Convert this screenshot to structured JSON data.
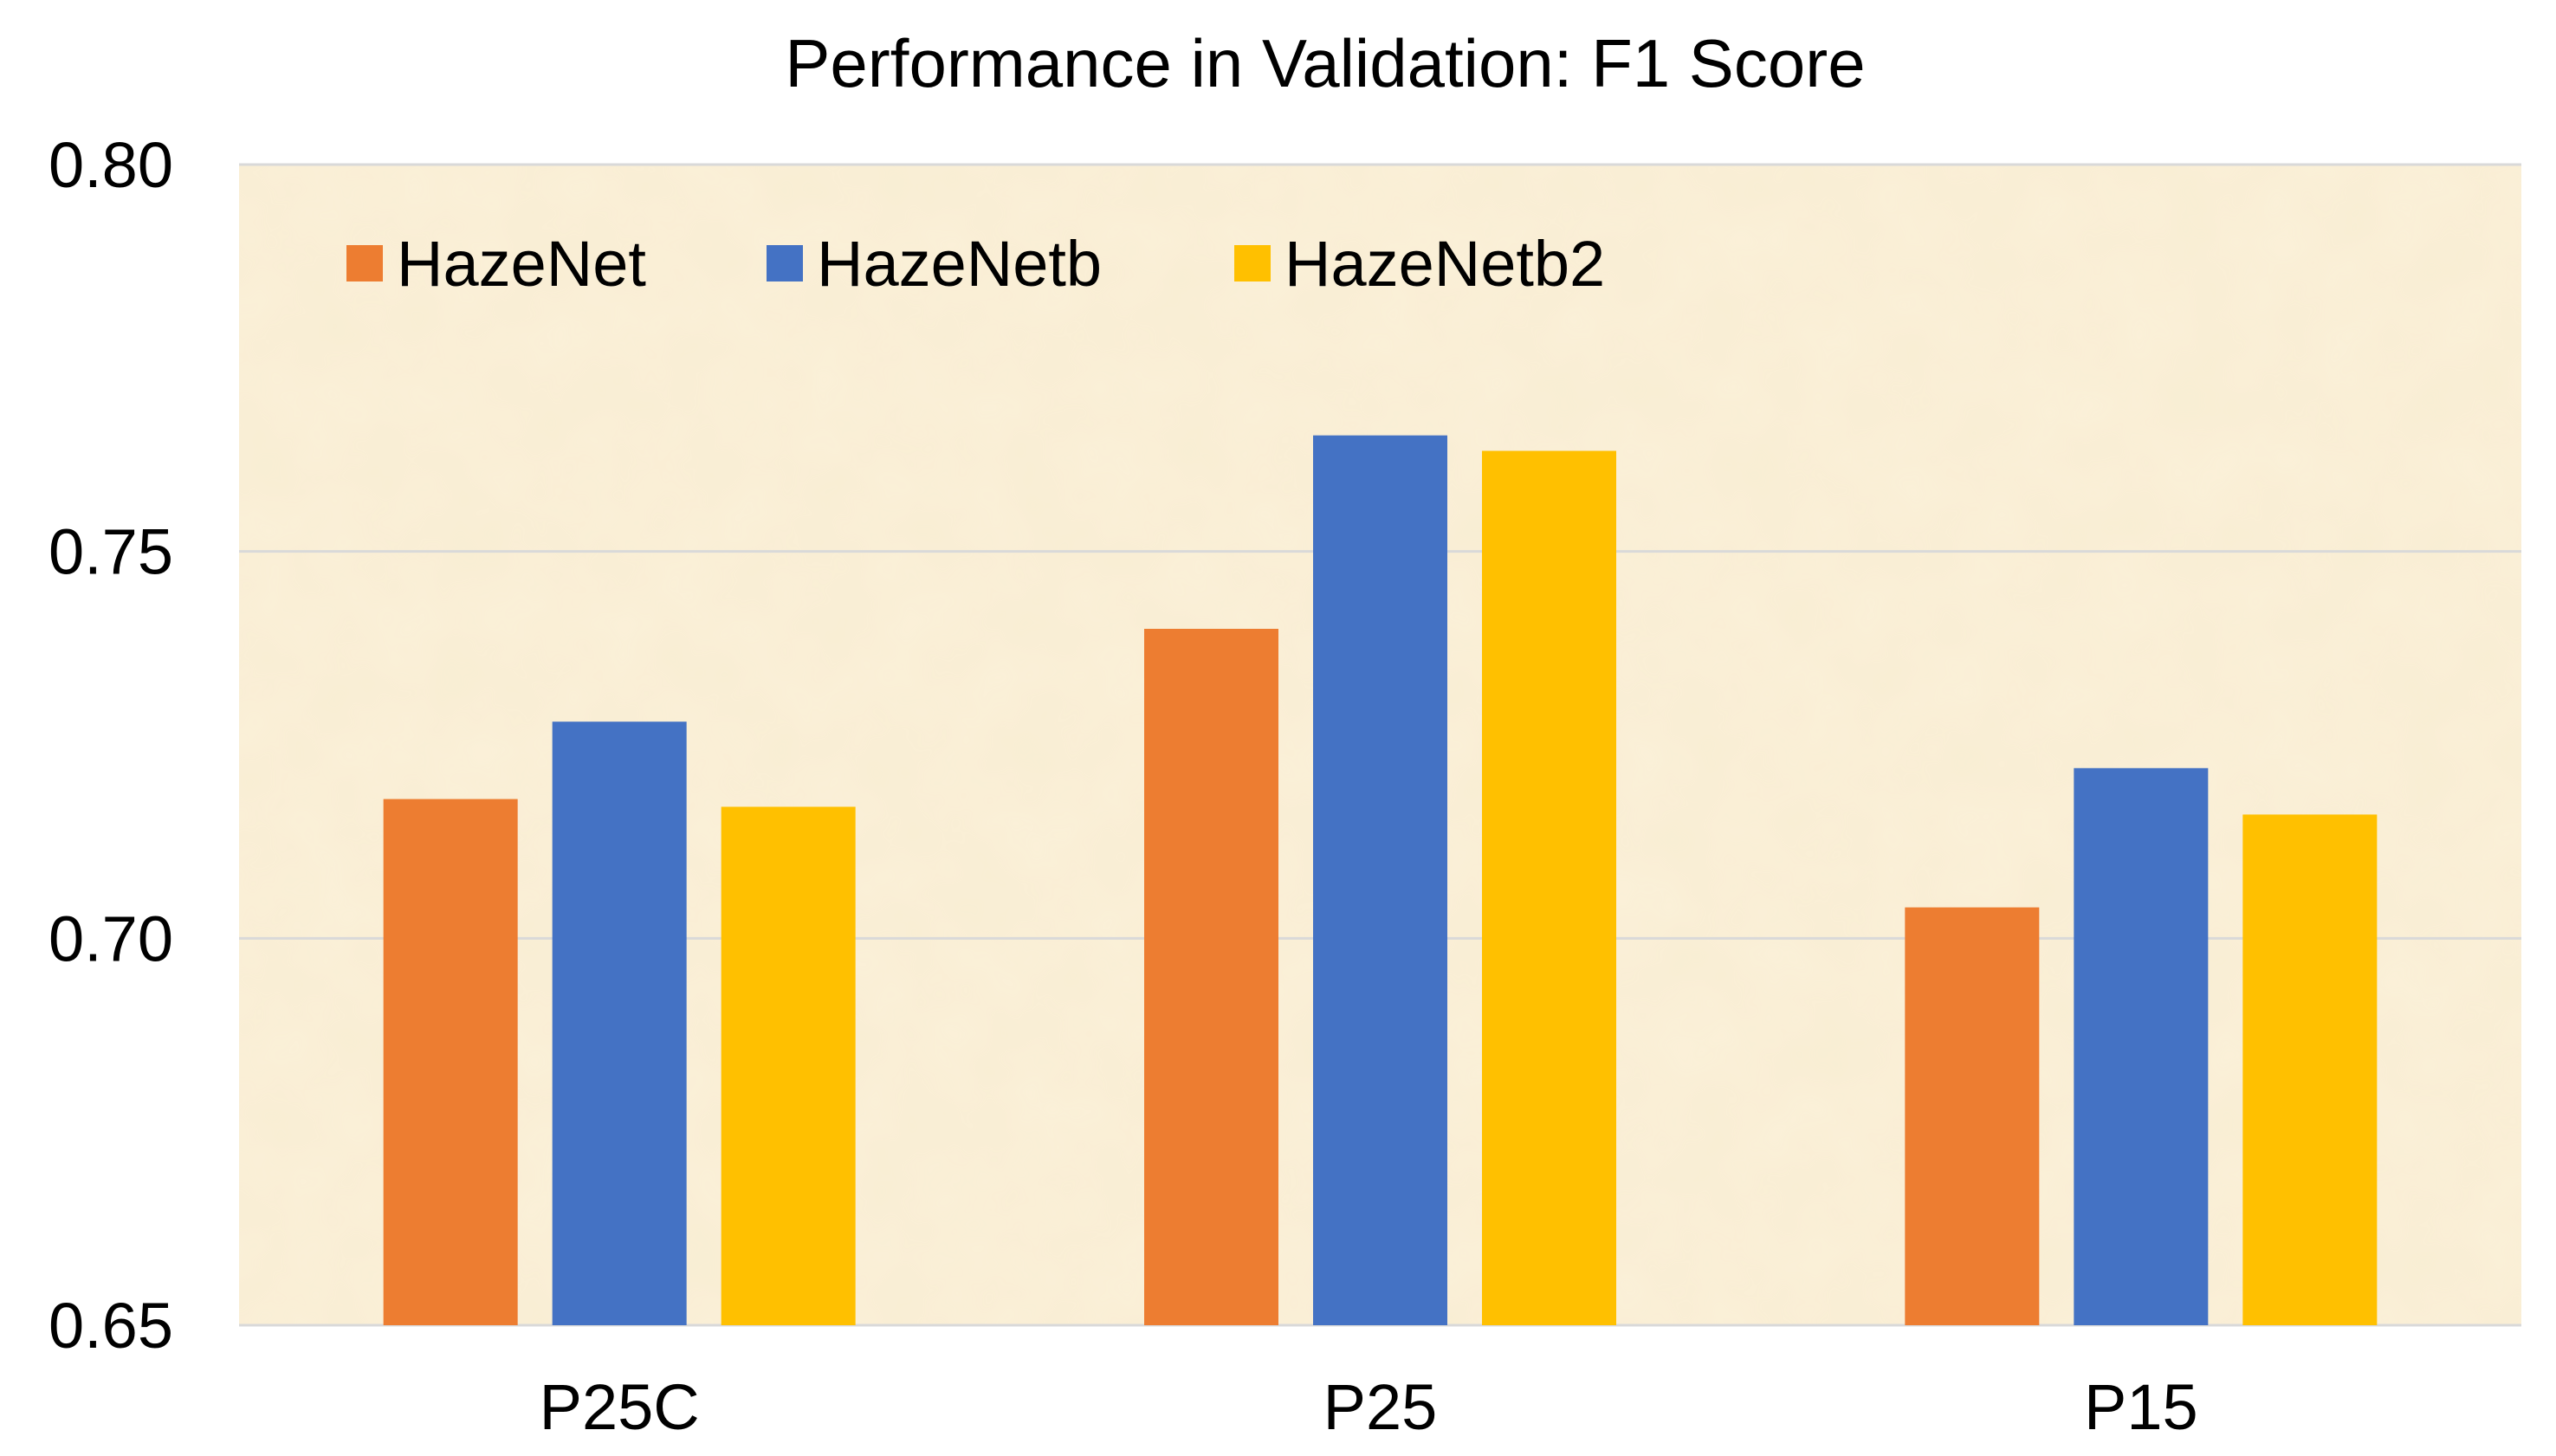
{
  "chart_data": {
    "type": "bar",
    "title": "Performance in Validation: F1 Score",
    "xlabel": "",
    "ylabel": "",
    "categories": [
      "P25C",
      "P25",
      "P15"
    ],
    "series": [
      {
        "name": "HazeNet",
        "color": "#ED7D31",
        "values": [
          0.718,
          0.74,
          0.704
        ]
      },
      {
        "name": "HazeNetb",
        "color": "#4472C4",
        "values": [
          0.728,
          0.765,
          0.722
        ]
      },
      {
        "name": "HazeNetb2",
        "color": "#FFC000",
        "values": [
          0.717,
          0.763,
          0.716
        ]
      }
    ],
    "ylim": [
      0.65,
      0.8
    ],
    "yticks": [
      "0.80",
      "0.75",
      "0.70",
      "0.65"
    ],
    "grid": true,
    "legend_position": "top-left",
    "plot_background": "#FBF1D9",
    "grid_color": "#D9D9D9"
  }
}
